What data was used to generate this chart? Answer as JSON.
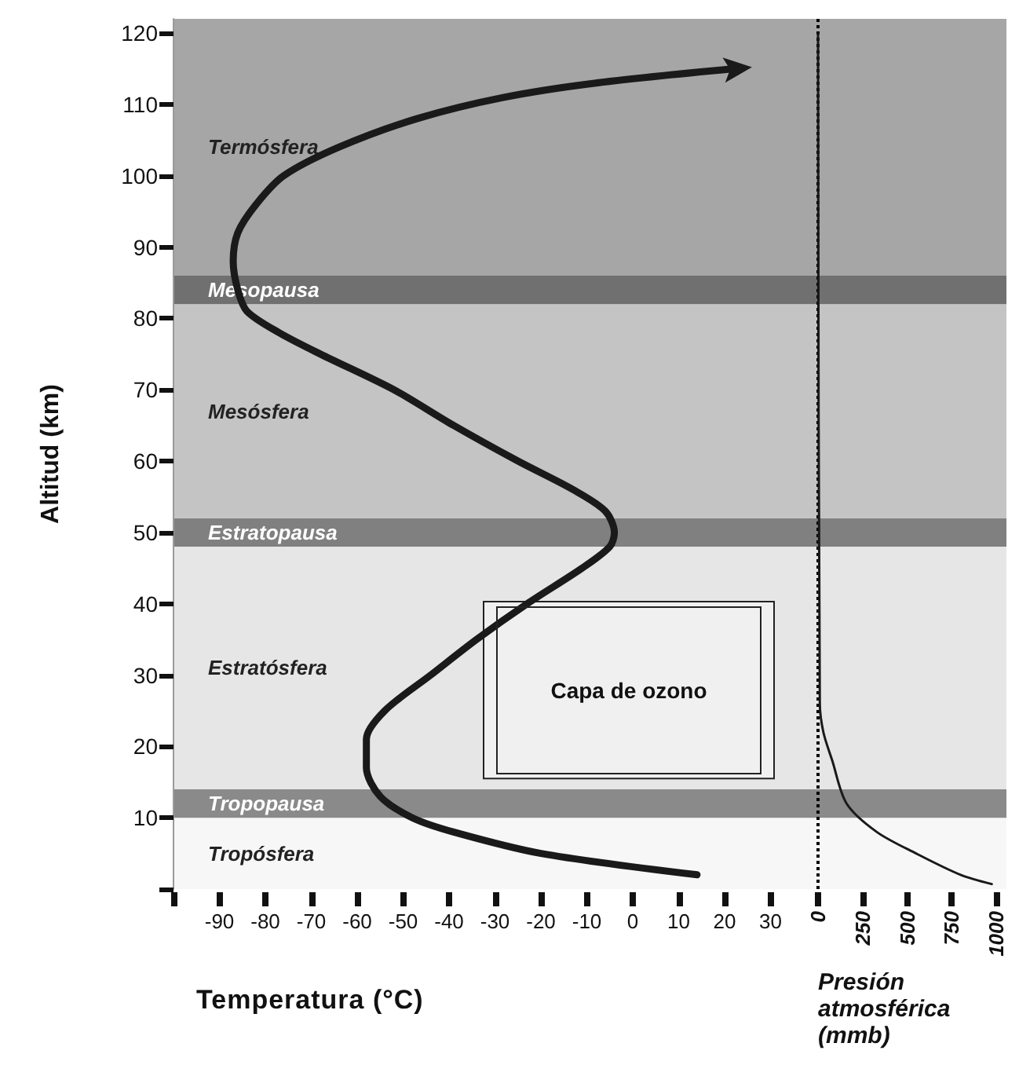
{
  "chart_data": {
    "type": "line",
    "ylabel": "Altitud (km)",
    "xlabel": "Temperatura (°C)",
    "x2label": "Presión atmosférica (mmb)",
    "ylim": [
      0,
      122
    ],
    "yticks": [
      {
        "value": 0,
        "label": null
      },
      10,
      20,
      30,
      40,
      50,
      60,
      70,
      80,
      90,
      100,
      110,
      120
    ],
    "xlim": [
      -100,
      40
    ],
    "xticks": [
      {
        "value": -100,
        "label": null
      },
      -90,
      -80,
      -70,
      -60,
      -50,
      -40,
      -30,
      -20,
      -10,
      0,
      10,
      20,
      30
    ],
    "x2lim": [
      0,
      1000
    ],
    "x2ticks": [
      0,
      250,
      500,
      750,
      1000
    ],
    "series": [
      {
        "color": "#1a1a1a",
        "x": [
          14,
          -20,
          -39,
          -48,
          -55,
          -58,
          -58,
          -54,
          -44,
          -34,
          -23,
          -11,
          -5,
          -4,
          -6,
          -13,
          -25,
          -39,
          -52,
          -68,
          -77,
          -84,
          -86,
          -87,
          -86,
          -82,
          -76,
          -64,
          -47,
          -28,
          -8,
          22
        ],
        "values": [
          2,
          5,
          8,
          10,
          13,
          17,
          21,
          25,
          30,
          35,
          40,
          45,
          48,
          50,
          53,
          56,
          60,
          65,
          70,
          75,
          78,
          81,
          84,
          88,
          92,
          96,
          100,
          104,
          108,
          111,
          113,
          115
        ]
      },
      {
        "color": "#1a1a1a",
        "axis": "x2",
        "x": [
          975,
          800,
          550,
          330,
          160,
          80,
          30,
          10,
          0
        ],
        "values": [
          0.7,
          2,
          5,
          8,
          12,
          18,
          22,
          26,
          120
        ]
      }
    ],
    "bands": [
      {
        "axis": "y",
        "from": 0,
        "to": 10,
        "label": "Tropósfera",
        "color": "#f7f7f7"
      },
      {
        "axis": "y",
        "from": 10,
        "to": 14,
        "label": "Tropopausa",
        "color": "#8a8a8a"
      },
      {
        "axis": "y",
        "from": 14,
        "to": 48,
        "label": "Estratósfera",
        "color": "#e6e6e6"
      },
      {
        "axis": "y",
        "from": 48,
        "to": 52,
        "label": "Estratopausa",
        "color": "#808080"
      },
      {
        "axis": "y",
        "from": 52,
        "to": 82,
        "label": "Mesósfera",
        "color": "#c4c4c4"
      },
      {
        "axis": "y",
        "from": 82,
        "to": 86,
        "label": "Mesopausa",
        "color": "#707070"
      },
      {
        "axis": "y",
        "from": 86,
        "to": 122,
        "label": "Termósfera",
        "color": "#a6a6a6"
      },
      {
        "axis": "y",
        "from": 15.5,
        "to": 40.3,
        "label": "Capa de ozono"
      }
    ],
    "ref_lines": [
      {
        "axis": "x2",
        "value": 0,
        "line_style": "dotted"
      }
    ]
  }
}
